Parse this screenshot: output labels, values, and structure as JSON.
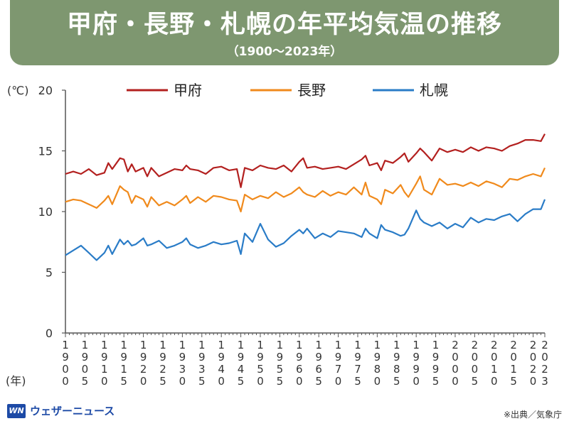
{
  "header": {
    "title": "甲府・長野・札幌の年平均気温の推移",
    "subtitle": "（1900～2023年）"
  },
  "chart_data": {
    "type": "line",
    "y_unit": "(℃)",
    "x_unit": "(年)",
    "ylim": [
      0,
      20
    ],
    "y_ticks": [
      0,
      5,
      10,
      15,
      20
    ],
    "xlim": [
      1900,
      2023
    ],
    "x_ticks": [
      "1900",
      "1905",
      "1910",
      "1915",
      "1920",
      "1925",
      "1930",
      "1935",
      "1940",
      "1945",
      "1950",
      "1955",
      "1960",
      "1965",
      "1970",
      "1975",
      "1980",
      "1985",
      "1990",
      "1995",
      "2000",
      "2005",
      "2010",
      "2015",
      "2020",
      "2023"
    ],
    "grid": false,
    "legend_position": "top",
    "series": [
      {
        "name": "甲府",
        "color": "#b3201f",
        "x": [
          1900,
          1902,
          1904,
          1906,
          1908,
          1910,
          1911,
          1912,
          1914,
          1915,
          1916,
          1917,
          1918,
          1920,
          1921,
          1922,
          1924,
          1926,
          1928,
          1930,
          1931,
          1932,
          1934,
          1936,
          1938,
          1940,
          1942,
          1944,
          1945,
          1946,
          1948,
          1950,
          1952,
          1954,
          1956,
          1958,
          1960,
          1961,
          1962,
          1964,
          1966,
          1968,
          1970,
          1972,
          1974,
          1976,
          1977,
          1978,
          1980,
          1981,
          1982,
          1984,
          1986,
          1987,
          1988,
          1990,
          1991,
          1992,
          1994,
          1996,
          1998,
          2000,
          2002,
          2004,
          2006,
          2008,
          2010,
          2012,
          2014,
          2016,
          2018,
          2020,
          2022,
          2023
        ],
        "values": [
          13.1,
          13.3,
          13.1,
          13.5,
          13.0,
          13.2,
          14.0,
          13.5,
          14.4,
          14.3,
          13.3,
          13.9,
          13.3,
          13.6,
          12.9,
          13.6,
          12.9,
          13.2,
          13.5,
          13.4,
          13.8,
          13.5,
          13.4,
          13.1,
          13.6,
          13.7,
          13.4,
          13.5,
          12.0,
          13.6,
          13.4,
          13.8,
          13.6,
          13.5,
          13.8,
          13.3,
          14.1,
          14.4,
          13.6,
          13.7,
          13.5,
          13.6,
          13.7,
          13.5,
          13.9,
          14.3,
          14.6,
          13.8,
          14.0,
          13.4,
          14.2,
          14.0,
          14.5,
          14.8,
          14.1,
          14.8,
          15.2,
          14.9,
          14.2,
          15.2,
          14.9,
          15.1,
          14.9,
          15.3,
          15.0,
          15.3,
          15.2,
          15.0,
          15.4,
          15.6,
          15.9,
          15.9,
          15.8,
          16.4
        ]
      },
      {
        "name": "長野",
        "color": "#f08a1c",
        "x": [
          1900,
          1902,
          1904,
          1906,
          1908,
          1910,
          1911,
          1912,
          1914,
          1915,
          1916,
          1917,
          1918,
          1920,
          1921,
          1922,
          1924,
          1926,
          1928,
          1930,
          1931,
          1932,
          1934,
          1936,
          1938,
          1940,
          1942,
          1944,
          1945,
          1946,
          1948,
          1950,
          1952,
          1954,
          1956,
          1958,
          1960,
          1961,
          1962,
          1964,
          1966,
          1968,
          1970,
          1972,
          1974,
          1976,
          1977,
          1978,
          1980,
          1981,
          1982,
          1984,
          1986,
          1987,
          1988,
          1990,
          1991,
          1992,
          1994,
          1996,
          1998,
          2000,
          2002,
          2004,
          2006,
          2008,
          2010,
          2012,
          2014,
          2016,
          2018,
          2020,
          2022,
          2023
        ],
        "values": [
          10.8,
          11.0,
          10.9,
          10.6,
          10.3,
          10.9,
          11.3,
          10.6,
          12.1,
          11.8,
          11.6,
          10.7,
          11.3,
          11.0,
          10.4,
          11.2,
          10.5,
          10.8,
          10.5,
          11.0,
          11.3,
          10.7,
          11.2,
          10.8,
          11.3,
          11.2,
          11.0,
          10.9,
          10.0,
          11.4,
          11.0,
          11.3,
          11.1,
          11.6,
          11.2,
          11.5,
          12.0,
          11.6,
          11.4,
          11.2,
          11.7,
          11.3,
          11.6,
          11.4,
          12.0,
          11.4,
          12.4,
          11.3,
          11.0,
          10.6,
          11.8,
          11.5,
          12.2,
          11.6,
          11.2,
          12.3,
          12.9,
          11.8,
          11.4,
          12.7,
          12.2,
          12.3,
          12.1,
          12.4,
          12.1,
          12.5,
          12.3,
          12.0,
          12.7,
          12.6,
          12.9,
          13.1,
          12.9,
          13.6
        ]
      },
      {
        "name": "札幌",
        "color": "#2a7cc7",
        "x": [
          1900,
          1902,
          1904,
          1906,
          1908,
          1910,
          1911,
          1912,
          1914,
          1915,
          1916,
          1917,
          1918,
          1920,
          1921,
          1922,
          1924,
          1926,
          1928,
          1930,
          1931,
          1932,
          1934,
          1936,
          1938,
          1940,
          1942,
          1944,
          1945,
          1946,
          1948,
          1950,
          1952,
          1954,
          1956,
          1958,
          1960,
          1961,
          1962,
          1964,
          1966,
          1968,
          1970,
          1972,
          1974,
          1976,
          1977,
          1978,
          1980,
          1981,
          1982,
          1984,
          1986,
          1987,
          1988,
          1990,
          1991,
          1992,
          1994,
          1996,
          1998,
          2000,
          2002,
          2004,
          2006,
          2008,
          2010,
          2012,
          2014,
          2016,
          2018,
          2020,
          2022,
          2023
        ],
        "values": [
          6.4,
          6.8,
          7.2,
          6.6,
          6.0,
          6.6,
          7.2,
          6.5,
          7.7,
          7.3,
          7.6,
          7.2,
          7.3,
          7.8,
          7.2,
          7.3,
          7.6,
          7.0,
          7.2,
          7.5,
          7.8,
          7.3,
          7.0,
          7.2,
          7.5,
          7.3,
          7.4,
          7.6,
          6.5,
          8.2,
          7.5,
          9.0,
          7.7,
          7.1,
          7.4,
          8.0,
          8.5,
          8.2,
          8.6,
          7.8,
          8.2,
          7.9,
          8.4,
          8.3,
          8.2,
          7.9,
          8.6,
          8.2,
          7.8,
          8.9,
          8.5,
          8.3,
          8.0,
          8.1,
          8.6,
          10.1,
          9.4,
          9.1,
          8.8,
          9.1,
          8.6,
          9.0,
          8.7,
          9.5,
          9.1,
          9.4,
          9.3,
          9.6,
          9.8,
          9.2,
          9.8,
          10.2,
          10.2,
          11.0
        ]
      }
    ]
  },
  "footer": {
    "logo_mark": "WN",
    "logo_text": "ウェザーニュース",
    "source": "※出典／気象庁"
  }
}
